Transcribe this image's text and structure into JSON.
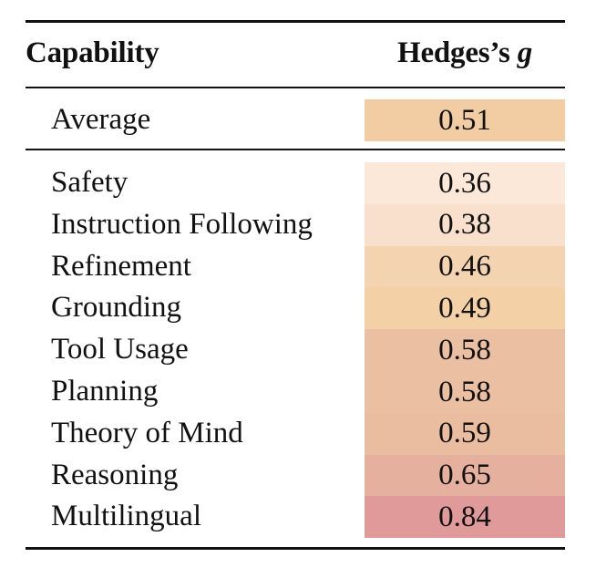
{
  "table": {
    "header": {
      "capability": "Capability",
      "metric_prefix": "Hedges’s ",
      "metric_symbol": "g"
    },
    "average": {
      "label": "Average",
      "value": "0.51",
      "color": "#F2CDA4"
    },
    "rows": [
      {
        "label": "Safety",
        "value": "0.36",
        "color": "#FBE8D8"
      },
      {
        "label": "Instruction Following",
        "value": "0.38",
        "color": "#F8E0CC"
      },
      {
        "label": "Refinement",
        "value": "0.46",
        "color": "#F4D3B0"
      },
      {
        "label": "Grounding",
        "value": "0.49",
        "color": "#F3D0A6"
      },
      {
        "label": "Tool Usage",
        "value": "0.58",
        "color": "#EABFA2"
      },
      {
        "label": "Planning",
        "value": "0.58",
        "color": "#EABFA2"
      },
      {
        "label": "Theory of Mind",
        "value": "0.59",
        "color": "#EABDA0"
      },
      {
        "label": "Reasoning",
        "value": "0.65",
        "color": "#E6B09E"
      },
      {
        "label": "Multilingual",
        "value": "0.84",
        "color": "#E09A9A"
      }
    ]
  }
}
